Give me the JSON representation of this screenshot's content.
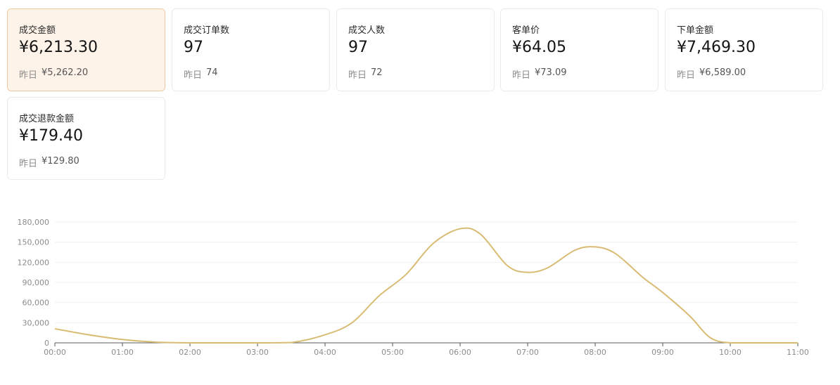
{
  "metrics": [
    {
      "label": "成交金额",
      "value": "¥6,213.30",
      "prev_label": "昨日",
      "prev_value": "¥5,262.20",
      "active": true
    },
    {
      "label": "成交订单数",
      "value": "97",
      "prev_label": "昨日",
      "prev_value": "74"
    },
    {
      "label": "成交人数",
      "value": "97",
      "prev_label": "昨日",
      "prev_value": "72"
    },
    {
      "label": "客单价",
      "value": "¥64.05",
      "prev_label": "昨日",
      "prev_value": "¥73.09"
    },
    {
      "label": "下单金额",
      "value": "¥7,469.30",
      "prev_label": "昨日",
      "prev_value": "¥6,589.00"
    },
    {
      "label": "成交退款金额",
      "value": "¥179.40",
      "prev_label": "昨日",
      "prev_value": "¥129.80"
    }
  ],
  "colors": {
    "line": "#d9bc74",
    "grid": "#f0f0f0",
    "axis": "#8c8c8c",
    "active_bg": "#fef3e8",
    "active_border": "#f1c9a1"
  },
  "chart_data": {
    "type": "line",
    "x": [
      "00:00",
      "01:00",
      "02:00",
      "03:00",
      "04:00",
      "05:00",
      "06:00",
      "07:00",
      "08:00",
      "09:00",
      "10:00",
      "11:00"
    ],
    "yticks": [
      "0",
      "30,000",
      "60,000",
      "90,000",
      "120,000",
      "150,000",
      "180,000"
    ],
    "ylim": [
      0,
      180000
    ],
    "grid": true,
    "series": [
      {
        "points": [
          [
            0,
            21000
          ],
          [
            0.5,
            12000
          ],
          [
            1,
            5000
          ],
          [
            1.5,
            1000
          ],
          [
            2,
            0
          ],
          [
            2.5,
            0
          ],
          [
            3,
            0
          ],
          [
            3.5,
            500
          ],
          [
            4,
            12000
          ],
          [
            4.4,
            30000
          ],
          [
            4.8,
            70000
          ],
          [
            5.2,
            102000
          ],
          [
            5.6,
            148000
          ],
          [
            6,
            170000
          ],
          [
            6.3,
            162000
          ],
          [
            6.7,
            115000
          ],
          [
            7,
            105000
          ],
          [
            7.3,
            112000
          ],
          [
            7.7,
            138000
          ],
          [
            8,
            143000
          ],
          [
            8.3,
            133000
          ],
          [
            8.7,
            98000
          ],
          [
            9,
            75000
          ],
          [
            9.4,
            40000
          ],
          [
            9.7,
            8000
          ],
          [
            10,
            0
          ],
          [
            10.5,
            0
          ],
          [
            11,
            0
          ]
        ]
      }
    ]
  }
}
